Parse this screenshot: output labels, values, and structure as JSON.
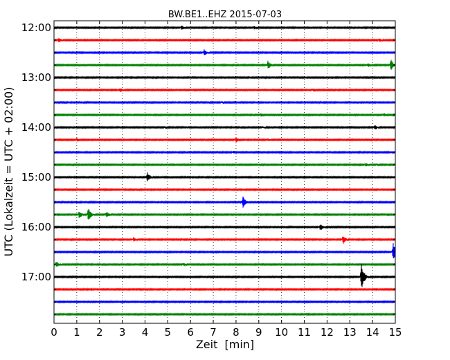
{
  "chart_data": {
    "type": "line",
    "title": "BW.BE1..EHZ 2015-07-03",
    "xlabel": "Zeit  [min]",
    "ylabel": "UTC (Lokalzeit = UTC + 02:00)",
    "xlim": [
      0,
      15
    ],
    "x_ticks": [
      0,
      1,
      2,
      3,
      4,
      5,
      6,
      7,
      8,
      9,
      10,
      11,
      12,
      13,
      14,
      15
    ],
    "x_tick_labels": [
      "0",
      "1",
      "2",
      "3",
      "4",
      "5",
      "6",
      "7",
      "8",
      "9",
      "10",
      "11",
      "12",
      "13",
      "14",
      "15"
    ],
    "y_tick_labels": [
      "12:00",
      "13:00",
      "14:00",
      "15:00",
      "16:00",
      "17:00"
    ],
    "traces_per_hour": 4,
    "grid": "vertical dotted",
    "series": [
      {
        "start": "12:00",
        "color": "#000000",
        "events": [
          {
            "t": 5.6,
            "a": 4
          },
          {
            "t": 8.8,
            "a": 3
          }
        ]
      },
      {
        "start": "12:15",
        "color": "#ff0000",
        "events": [
          {
            "t": 0.2,
            "a": 4
          },
          {
            "t": 14.3,
            "a": 3
          }
        ]
      },
      {
        "start": "12:30",
        "color": "#0000ff",
        "events": [
          {
            "t": 6.6,
            "a": 5
          }
        ]
      },
      {
        "start": "12:45",
        "color": "#008000",
        "events": [
          {
            "t": 9.4,
            "a": 7
          },
          {
            "t": 13.8,
            "a": 4
          },
          {
            "t": 14.8,
            "a": 9
          }
        ]
      },
      {
        "start": "13:00",
        "color": "#000000",
        "events": []
      },
      {
        "start": "13:15",
        "color": "#ff0000",
        "events": [
          {
            "t": 2.9,
            "a": 4
          },
          {
            "t": 11.4,
            "a": 3
          }
        ]
      },
      {
        "start": "13:30",
        "color": "#0000ff",
        "events": [
          {
            "t": 7.4,
            "a": 2
          }
        ]
      },
      {
        "start": "13:45",
        "color": "#008000",
        "events": [
          {
            "t": 9.1,
            "a": 3
          },
          {
            "t": 14.5,
            "a": 3
          }
        ]
      },
      {
        "start": "14:00",
        "color": "#000000",
        "events": [
          {
            "t": 4.9,
            "a": 2
          },
          {
            "t": 9.2,
            "a": 2
          },
          {
            "t": 14.1,
            "a": 4
          }
        ]
      },
      {
        "start": "14:15",
        "color": "#ff0000",
        "events": [
          {
            "t": 1.0,
            "a": 3
          },
          {
            "t": 8.0,
            "a": 5
          },
          {
            "t": 9.4,
            "a": 2
          }
        ]
      },
      {
        "start": "14:30",
        "color": "#0000ff",
        "events": [
          {
            "t": 7.9,
            "a": 3
          }
        ]
      },
      {
        "start": "14:45",
        "color": "#008000",
        "events": [
          {
            "t": 13.7,
            "a": 3
          },
          {
            "t": 14.2,
            "a": 2
          }
        ]
      },
      {
        "start": "15:00",
        "color": "#000000",
        "events": [
          {
            "t": 4.1,
            "a": 8
          }
        ]
      },
      {
        "start": "15:15",
        "color": "#ff0000",
        "events": []
      },
      {
        "start": "15:30",
        "color": "#0000ff",
        "events": [
          {
            "t": 8.3,
            "a": 9
          }
        ]
      },
      {
        "start": "15:45",
        "color": "#008000",
        "events": [
          {
            "t": 1.1,
            "a": 6
          },
          {
            "t": 1.5,
            "a": 11
          },
          {
            "t": 2.3,
            "a": 5
          }
        ]
      },
      {
        "start": "16:00",
        "color": "#000000",
        "events": [
          {
            "t": 11.7,
            "a": 6
          }
        ]
      },
      {
        "start": "16:15",
        "color": "#ff0000",
        "events": [
          {
            "t": 3.5,
            "a": 4
          },
          {
            "t": 12.7,
            "a": 7
          }
        ]
      },
      {
        "start": "16:30",
        "color": "#0000ff",
        "events": [
          {
            "t": 14.9,
            "a": 14
          }
        ]
      },
      {
        "start": "16:45",
        "color": "#008000",
        "events": [
          {
            "t": 0.1,
            "a": 5
          },
          {
            "t": 5.7,
            "a": 3
          }
        ]
      },
      {
        "start": "17:00",
        "color": "#000000",
        "events": [
          {
            "t": 13.5,
            "a": 22
          }
        ]
      },
      {
        "start": "17:15",
        "color": "#ff0000",
        "events": []
      },
      {
        "start": "17:30",
        "color": "#0000ff",
        "events": []
      },
      {
        "start": "17:45",
        "color": "#008000",
        "events": []
      }
    ]
  }
}
